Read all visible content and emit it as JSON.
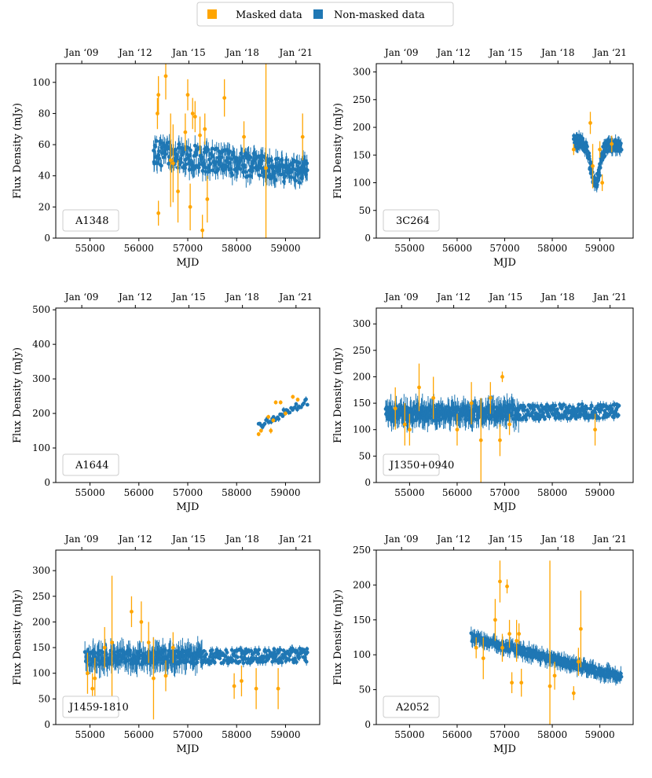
{
  "colors": {
    "masked": "#ffa500",
    "nonmasked": "#1f77b4"
  },
  "legend": {
    "masked_label": "Masked data",
    "nonmasked_label": "Non-masked data"
  },
  "chart_data": [
    {
      "type": "scatter",
      "label": "A1348",
      "xlabel": "MJD",
      "ylabel": "Flux Density (mJy)",
      "xlim": [
        54300,
        59700
      ],
      "ylim": [
        0,
        112
      ],
      "xticks": [
        55000,
        56000,
        57000,
        58000,
        59000
      ],
      "yticks": [
        0,
        20,
        40,
        60,
        80,
        100
      ],
      "top_ticks": [
        "Jan ‘09",
        "Jan ‘12",
        "Jan ‘15",
        "Jan ‘18",
        "Jan ‘21"
      ],
      "nonmasked": {
        "x_range": [
          56300,
          59450
        ],
        "level": [
          55,
          42
        ],
        "noise": 8,
        "err": 5,
        "n": 320
      },
      "masked": [
        [
          56380,
          80,
          10
        ],
        [
          56400,
          92,
          12
        ],
        [
          56400,
          16,
          8
        ],
        [
          56550,
          104,
          15
        ],
        [
          56650,
          50,
          30
        ],
        [
          56700,
          48,
          25
        ],
        [
          56800,
          30,
          20
        ],
        [
          56950,
          68,
          12
        ],
        [
          57000,
          92,
          10
        ],
        [
          57050,
          20,
          15
        ],
        [
          57100,
          80,
          10
        ],
        [
          57150,
          78,
          10
        ],
        [
          57250,
          66,
          12
        ],
        [
          57300,
          5,
          10
        ],
        [
          57350,
          70,
          10
        ],
        [
          57400,
          25,
          15
        ],
        [
          57750,
          90,
          12
        ],
        [
          58150,
          65,
          10
        ],
        [
          58600,
          45,
          70
        ],
        [
          59350,
          65,
          15
        ]
      ]
    },
    {
      "type": "scatter",
      "label": "3C264",
      "xlabel": "MJD",
      "ylabel": "Flux Density (mJy)",
      "xlim": [
        54300,
        59700
      ],
      "ylim": [
        0,
        315
      ],
      "xticks": [
        55000,
        56000,
        57000,
        58000,
        59000
      ],
      "yticks": [
        0,
        50,
        100,
        150,
        200,
        250,
        300
      ],
      "top_ticks": [
        "Jan ‘09",
        "Jan ‘12",
        "Jan ‘15",
        "Jan ‘18",
        "Jan ‘21"
      ],
      "nonmasked": {
        "x_range": [
          58450,
          59450
        ],
        "level": [
          175,
          165
        ],
        "dip": 105,
        "noise": 12,
        "err": 8,
        "n": 170
      },
      "masked": [
        [
          58450,
          160,
          10
        ],
        [
          58800,
          208,
          20
        ],
        [
          58850,
          130,
          40
        ],
        [
          59000,
          160,
          15
        ],
        [
          59050,
          100,
          15
        ],
        [
          59250,
          170,
          15
        ]
      ]
    },
    {
      "type": "scatter",
      "label": "A1644",
      "xlabel": "MJD",
      "ylabel": "Flux Density (mJy)",
      "xlim": [
        54300,
        59700
      ],
      "ylim": [
        0,
        505
      ],
      "xticks": [
        55000,
        56000,
        57000,
        58000,
        59000
      ],
      "yticks": [
        0,
        100,
        200,
        300,
        400,
        500
      ],
      "top_ticks": [
        "Jan ‘09",
        "Jan ‘12",
        "Jan ‘15",
        "Jan ‘18",
        "Jan ‘21"
      ],
      "nonmasked": {
        "x_range": [
          58450,
          59450
        ],
        "level": [
          165,
          235
        ],
        "noise": 10,
        "err": 6,
        "n": 40
      },
      "masked": [
        [
          58450,
          140,
          6
        ],
        [
          58500,
          150,
          6
        ],
        [
          58650,
          190,
          6
        ],
        [
          58750,
          180,
          6
        ],
        [
          58800,
          232,
          6
        ],
        [
          58900,
          232,
          6
        ],
        [
          59000,
          200,
          6
        ],
        [
          59150,
          248,
          6
        ],
        [
          59250,
          240,
          6
        ],
        [
          58700,
          150,
          8
        ]
      ]
    },
    {
      "type": "scatter",
      "label": "J1350+0940",
      "xlabel": "MJD",
      "ylabel": "Flux Density (mJy)",
      "xlim": [
        54300,
        59700
      ],
      "ylim": [
        0,
        330
      ],
      "xticks": [
        55000,
        56000,
        57000,
        58000,
        59000
      ],
      "yticks": [
        0,
        50,
        100,
        150,
        200,
        250,
        300
      ],
      "top_ticks": [
        "Jan ‘09",
        "Jan ‘12",
        "Jan ‘15",
        "Jan ‘18",
        "Jan ‘21"
      ],
      "nonmasked": {
        "x_range": [
          54500,
          59400
        ],
        "level": [
          130,
          135
        ],
        "noise": 14,
        "err": 18,
        "err_late": 6,
        "n": 520
      },
      "masked": [
        [
          54700,
          140,
          40
        ],
        [
          54900,
          110,
          40
        ],
        [
          55000,
          100,
          30
        ],
        [
          55200,
          180,
          45
        ],
        [
          55500,
          160,
          40
        ],
        [
          56000,
          100,
          30
        ],
        [
          56300,
          150,
          40
        ],
        [
          56500,
          80,
          80
        ],
        [
          56700,
          160,
          30
        ],
        [
          56900,
          80,
          30
        ],
        [
          56950,
          200,
          10
        ],
        [
          57100,
          110,
          20
        ],
        [
          58900,
          100,
          30
        ]
      ]
    },
    {
      "type": "scatter",
      "label": "J1459-1810",
      "xlabel": "MJD",
      "ylabel": "Flux Density (mJy)",
      "xlim": [
        54300,
        59700
      ],
      "ylim": [
        0,
        340
      ],
      "xticks": [
        55000,
        56000,
        57000,
        58000,
        59000
      ],
      "yticks": [
        0,
        50,
        100,
        150,
        200,
        250,
        300
      ],
      "top_ticks": [
        "Jan ‘09",
        "Jan ‘12",
        "Jan ‘15",
        "Jan ‘18",
        "Jan ‘21"
      ],
      "nonmasked": {
        "x_range": [
          54900,
          59450
        ],
        "level": [
          130,
          135
        ],
        "noise": 14,
        "err": 20,
        "err_late": 6,
        "n": 430
      },
      "masked": [
        [
          54950,
          100,
          40
        ],
        [
          55050,
          70,
          30
        ],
        [
          55100,
          90,
          40
        ],
        [
          55300,
          150,
          40
        ],
        [
          55450,
          160,
          130
        ],
        [
          55850,
          220,
          30
        ],
        [
          56050,
          200,
          40
        ],
        [
          56200,
          160,
          40
        ],
        [
          56300,
          90,
          80
        ],
        [
          56550,
          95,
          30
        ],
        [
          56700,
          150,
          30
        ],
        [
          57950,
          75,
          25
        ],
        [
          58100,
          85,
          30
        ],
        [
          58400,
          70,
          40
        ],
        [
          58850,
          70,
          40
        ]
      ]
    },
    {
      "type": "scatter",
      "label": "A2052",
      "xlabel": "MJD",
      "ylabel": "Flux Density (mJy)",
      "xlim": [
        54300,
        59700
      ],
      "ylim": [
        0,
        250
      ],
      "xticks": [
        55000,
        56000,
        57000,
        58000,
        59000
      ],
      "yticks": [
        0,
        50,
        100,
        150,
        200,
        250
      ],
      "top_ticks": [
        "Jan ‘09",
        "Jan ‘12",
        "Jan ‘15",
        "Jan ‘18",
        "Jan ‘21"
      ],
      "nonmasked": {
        "x_range": [
          56300,
          59450
        ],
        "level": [
          125,
          68
        ],
        "noise": 6,
        "err": 8,
        "n": 330
      },
      "masked": [
        [
          56400,
          110,
          15
        ],
        [
          56550,
          95,
          30
        ],
        [
          56800,
          150,
          30
        ],
        [
          56900,
          205,
          30
        ],
        [
          56950,
          110,
          20
        ],
        [
          57050,
          198,
          10
        ],
        [
          57100,
          130,
          20
        ],
        [
          57150,
          60,
          15
        ],
        [
          57250,
          120,
          30
        ],
        [
          57300,
          130,
          15
        ],
        [
          57350,
          60,
          20
        ],
        [
          57950,
          55,
          180
        ],
        [
          58050,
          70,
          20
        ],
        [
          58450,
          45,
          10
        ],
        [
          58550,
          90,
          20
        ],
        [
          58600,
          137,
          55
        ]
      ]
    }
  ]
}
